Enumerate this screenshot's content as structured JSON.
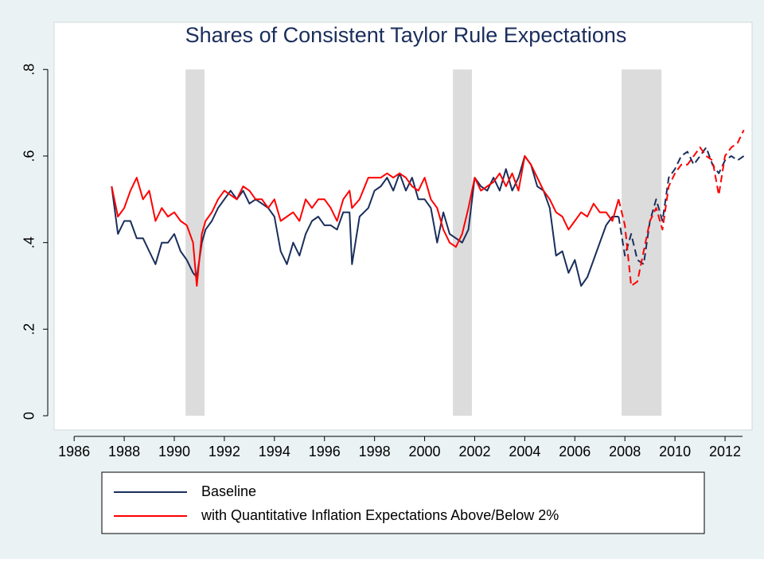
{
  "chart_data": {
    "type": "line",
    "title": "Shares of Consistent Taylor Rule Expectations",
    "x": [
      1987.5,
      1987.75,
      1988,
      1988.25,
      1988.5,
      1988.75,
      1989,
      1989.25,
      1989.5,
      1989.75,
      1990,
      1990.25,
      1990.5,
      1990.75,
      1990.9,
      1991.1,
      1991.25,
      1991.5,
      1991.75,
      1992,
      1992.25,
      1992.5,
      1992.75,
      1993,
      1993.25,
      1993.5,
      1993.75,
      1994,
      1994.25,
      1994.5,
      1994.75,
      1995,
      1995.25,
      1995.5,
      1995.75,
      1996,
      1996.25,
      1996.5,
      1996.75,
      1997,
      1997.1,
      1997.4,
      1997.75,
      1998,
      1998.25,
      1998.5,
      1998.75,
      1999,
      1999.25,
      1999.5,
      1999.75,
      2000,
      2000.25,
      2000.5,
      2000.75,
      2001,
      2001.25,
      2001.5,
      2001.75,
      2002,
      2002.25,
      2002.5,
      2002.75,
      2003,
      2003.25,
      2003.5,
      2003.75,
      2004,
      2004.25,
      2004.5,
      2004.75,
      2005,
      2005.25,
      2005.5,
      2005.75,
      2006,
      2006.25,
      2006.5,
      2006.75,
      2007,
      2007.25,
      2007.5,
      2007.75,
      2008,
      2008.25,
      2008.5,
      2008.75,
      2009,
      2009.25,
      2009.5,
      2009.75,
      2010,
      2010.25,
      2010.5,
      2010.75,
      2011,
      2011.25,
      2011.5,
      2011.75,
      2012,
      2012.25,
      2012.5,
      2012.75
    ],
    "series": [
      {
        "name": "Baseline",
        "color": "#1a2e5c",
        "values": [
          0.53,
          0.42,
          0.45,
          0.45,
          0.41,
          0.41,
          0.38,
          0.35,
          0.4,
          0.4,
          0.42,
          0.38,
          0.36,
          0.33,
          0.32,
          0.4,
          0.43,
          0.45,
          0.48,
          0.5,
          0.52,
          0.5,
          0.52,
          0.49,
          0.5,
          0.49,
          0.48,
          0.46,
          0.38,
          0.35,
          0.4,
          0.37,
          0.42,
          0.45,
          0.46,
          0.44,
          0.44,
          0.43,
          0.47,
          0.47,
          0.35,
          0.46,
          0.48,
          0.52,
          0.53,
          0.55,
          0.52,
          0.56,
          0.52,
          0.55,
          0.5,
          0.5,
          0.48,
          0.4,
          0.47,
          0.42,
          0.41,
          0.4,
          0.43,
          0.55,
          0.53,
          0.52,
          0.55,
          0.52,
          0.57,
          0.52,
          0.55,
          0.6,
          0.58,
          0.53,
          0.52,
          0.48,
          0.37,
          0.38,
          0.33,
          0.36,
          0.3,
          0.32,
          0.36,
          0.4,
          0.44,
          0.46,
          0.46,
          0.37,
          0.42,
          0.36,
          0.35,
          0.45,
          0.5,
          0.45,
          0.55,
          0.57,
          0.6,
          0.61,
          0.58,
          0.6,
          0.62,
          0.58,
          0.56,
          0.59,
          0.6,
          0.59,
          0.6
        ]
      },
      {
        "name": "with Quantitative Inflation Expectations Above/Below 2%",
        "color": "#ff0000",
        "values": [
          0.53,
          0.46,
          0.48,
          0.52,
          0.55,
          0.5,
          0.52,
          0.45,
          0.48,
          0.46,
          0.47,
          0.45,
          0.44,
          0.4,
          0.3,
          0.42,
          0.45,
          0.47,
          0.5,
          0.52,
          0.51,
          0.5,
          0.53,
          0.52,
          0.5,
          0.5,
          0.48,
          0.5,
          0.45,
          0.46,
          0.47,
          0.45,
          0.5,
          0.48,
          0.5,
          0.5,
          0.48,
          0.45,
          0.5,
          0.52,
          0.48,
          0.5,
          0.55,
          0.55,
          0.55,
          0.56,
          0.55,
          0.56,
          0.55,
          0.53,
          0.52,
          0.55,
          0.5,
          0.48,
          0.43,
          0.4,
          0.39,
          0.42,
          0.48,
          0.55,
          0.52,
          0.53,
          0.54,
          0.56,
          0.53,
          0.56,
          0.52,
          0.6,
          0.58,
          0.55,
          0.52,
          0.5,
          0.47,
          0.46,
          0.43,
          0.45,
          0.47,
          0.46,
          0.49,
          0.47,
          0.47,
          0.45,
          0.5,
          0.44,
          0.3,
          0.31,
          0.38,
          0.45,
          0.48,
          0.43,
          0.53,
          0.56,
          0.58,
          0.58,
          0.6,
          0.62,
          0.6,
          0.59,
          0.51,
          0.6,
          0.62,
          0.63,
          0.66
        ]
      }
    ],
    "dashed_from": 2007.9,
    "shaded_regions": [
      [
        1990.45,
        1991.21
      ],
      [
        2001.13,
        2001.89
      ],
      [
        2007.87,
        2009.46
      ]
    ],
    "xlim": [
      1985.2,
      2013.08
    ],
    "xticks": [
      1986,
      1988,
      1990,
      1992,
      1994,
      1996,
      1998,
      2000,
      2002,
      2004,
      2006,
      2008,
      2010,
      2012
    ],
    "ylim": [
      -0.033,
      0.909
    ],
    "yticks": [
      0,
      {
        "value": 0.2,
        "label": ".2"
      },
      {
        "value": 0.4,
        "label": ".4"
      },
      {
        "value": 0.6,
        "label": ".6"
      },
      {
        "value": 0.8,
        "label": ".8"
      }
    ],
    "grid": false
  }
}
